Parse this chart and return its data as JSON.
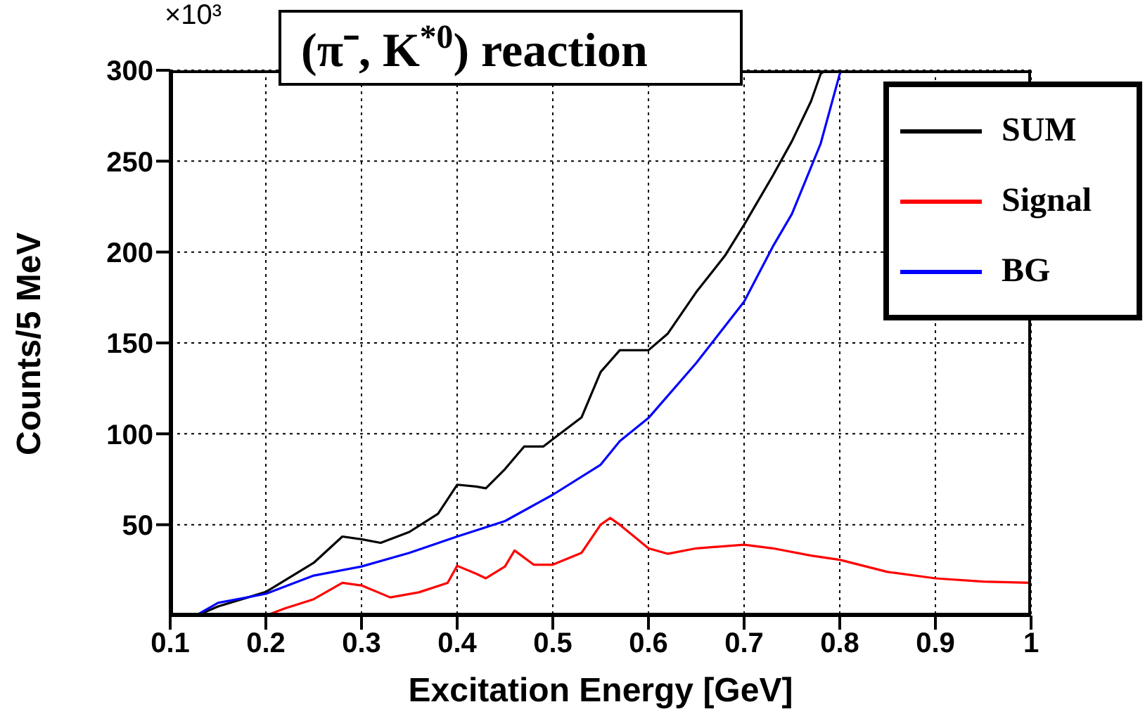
{
  "chart_data": {
    "type": "line",
    "title": "(π⁻, K$^{*0}$) reaction",
    "xlabel": "Excitation Energy [GeV]",
    "ylabel": "Counts/5 MeV",
    "annotations": [
      "×10³"
    ],
    "xlim": [
      0.1,
      1
    ],
    "xticks": [
      0.1,
      0.2,
      0.3,
      0.4,
      0.5,
      0.6,
      0.7,
      0.8,
      0.9,
      1
    ],
    "ylim": [
      0,
      300
    ],
    "yticks": [
      50,
      100,
      150,
      200,
      250,
      300
    ],
    "grid": true,
    "legend": "top right",
    "line_style": "solid",
    "marker": "none",
    "series": [
      {
        "name": "SUM",
        "color": "#000000",
        "x": [
          0.1,
          0.13,
          0.15,
          0.2,
          0.25,
          0.28,
          0.3,
          0.32,
          0.35,
          0.38,
          0.4,
          0.42,
          0.43,
          0.45,
          0.47,
          0.49,
          0.5,
          0.53,
          0.55,
          0.57,
          0.58,
          0.6,
          0.62,
          0.65,
          0.68,
          0.7,
          0.73,
          0.75,
          0.77,
          0.78,
          0.785
        ],
        "values": [
          0,
          0.5,
          5,
          13,
          29,
          43.5,
          42,
          40,
          46,
          56,
          72,
          71,
          70,
          80.6,
          93,
          93,
          97,
          109,
          134,
          146,
          146,
          146,
          155,
          178,
          198,
          215,
          242,
          261,
          283,
          298,
          300
        ]
      },
      {
        "name": "Signal",
        "color": "#ff0000",
        "x": [
          0.1,
          0.15,
          0.2,
          0.22,
          0.25,
          0.28,
          0.3,
          0.33,
          0.36,
          0.39,
          0.4,
          0.42,
          0.43,
          0.45,
          0.46,
          0.48,
          0.5,
          0.53,
          0.55,
          0.56,
          0.57,
          0.6,
          0.62,
          0.65,
          0.7,
          0.73,
          0.77,
          0.8,
          0.85,
          0.9,
          0.95,
          1
        ],
        "values": [
          0,
          0,
          0,
          4,
          9,
          18,
          16.6,
          10,
          12.8,
          18,
          27.4,
          23,
          20.5,
          27,
          35.8,
          28,
          28,
          34.5,
          50,
          53.7,
          50,
          37,
          34,
          37,
          39,
          37,
          33,
          30.7,
          24,
          20.5,
          18.7,
          18
        ]
      },
      {
        "name": "BG",
        "color": "#0000ff",
        "x": [
          0.1,
          0.13,
          0.15,
          0.2,
          0.25,
          0.3,
          0.35,
          0.4,
          0.45,
          0.5,
          0.55,
          0.57,
          0.6,
          0.65,
          0.7,
          0.73,
          0.75,
          0.78,
          0.8,
          0.802
        ],
        "values": [
          0,
          1,
          7,
          12,
          22,
          27,
          34.5,
          43.5,
          52,
          66.5,
          83,
          96,
          108.7,
          139,
          172.7,
          203,
          221,
          259.6,
          298,
          300
        ]
      }
    ]
  }
}
